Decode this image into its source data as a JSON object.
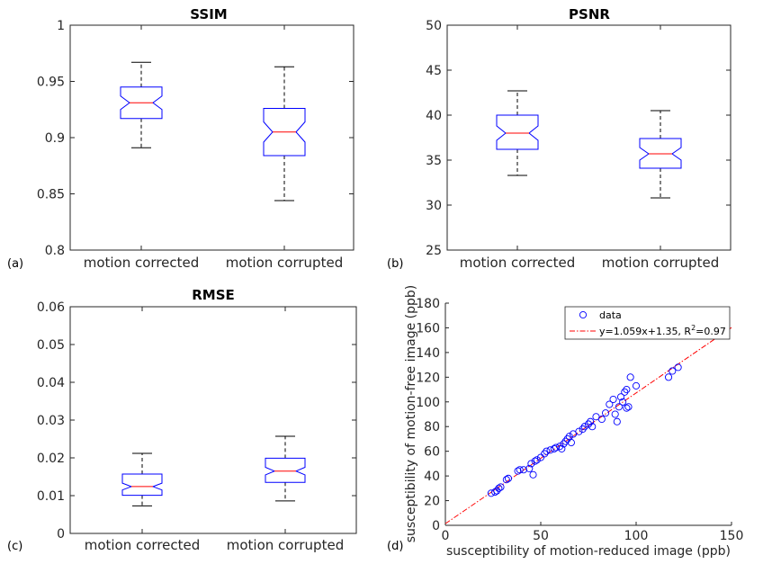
{
  "chart_data": [
    {
      "type": "box",
      "panel": "(a)",
      "title": "SSIM",
      "categories": [
        "motion corrected",
        "motion corrupted"
      ],
      "ylim": [
        0.8,
        1
      ],
      "yticks": [
        0.8,
        0.85,
        0.9,
        0.95,
        1
      ],
      "ytick_labels": [
        "0.8",
        "0.85",
        "0.9",
        "0.95",
        "1"
      ],
      "boxes": [
        {
          "whisker_low": 0.891,
          "q1": 0.917,
          "median": 0.931,
          "q3": 0.945,
          "whisker_high": 0.967,
          "notch_low": 0.925,
          "notch_high": 0.937
        },
        {
          "whisker_low": 0.844,
          "q1": 0.884,
          "median": 0.905,
          "q3": 0.926,
          "whisker_high": 0.963,
          "notch_low": 0.896,
          "notch_high": 0.914
        }
      ]
    },
    {
      "type": "box",
      "panel": "(b)",
      "title": "PSNR",
      "categories": [
        "motion corrected",
        "motion corrupted"
      ],
      "ylim": [
        25,
        50
      ],
      "yticks": [
        25,
        30,
        35,
        40,
        45,
        50
      ],
      "ytick_labels": [
        "25",
        "30",
        "35",
        "40",
        "45",
        "50"
      ],
      "boxes": [
        {
          "whisker_low": 33.3,
          "q1": 36.2,
          "median": 38.0,
          "q3": 40.0,
          "whisker_high": 42.7,
          "notch_low": 37.2,
          "notch_high": 38.8
        },
        {
          "whisker_low": 30.8,
          "q1": 34.1,
          "median": 35.7,
          "q3": 37.4,
          "whisker_high": 40.5,
          "notch_low": 35.0,
          "notch_high": 36.4
        }
      ]
    },
    {
      "type": "box",
      "panel": "(c)",
      "title": "RMSE",
      "categories": [
        "motion corrected",
        "motion corrupted"
      ],
      "ylim": [
        0,
        0.06
      ],
      "yticks": [
        0,
        0.01,
        0.02,
        0.03,
        0.04,
        0.05,
        0.06
      ],
      "ytick_labels": [
        "0",
        "0.01",
        "0.02",
        "0.03",
        "0.04",
        "0.05",
        "0.06"
      ],
      "boxes": [
        {
          "whisker_low": 0.0073,
          "q1": 0.0101,
          "median": 0.0124,
          "q3": 0.0157,
          "whisker_high": 0.0212,
          "notch_low": 0.0115,
          "notch_high": 0.0133
        },
        {
          "whisker_low": 0.0086,
          "q1": 0.0135,
          "median": 0.0165,
          "q3": 0.0199,
          "whisker_high": 0.0257,
          "notch_low": 0.0155,
          "notch_high": 0.0175
        }
      ]
    },
    {
      "type": "scatter",
      "panel": "(d)",
      "xlabel": "susceptibility of motion-reduced image (ppb)",
      "ylabel": "susceptibility of motion-free image (ppb)",
      "xlim": [
        0,
        150
      ],
      "ylim": [
        0,
        180
      ],
      "xticks": [
        0,
        50,
        100,
        150
      ],
      "xtick_labels": [
        "0",
        "50",
        "100",
        "150"
      ],
      "yticks": [
        0,
        20,
        40,
        60,
        80,
        100,
        120,
        140,
        160,
        180
      ],
      "ytick_labels": [
        "0",
        "20",
        "40",
        "60",
        "80",
        "100",
        "120",
        "140",
        "160",
        "180"
      ],
      "legend": {
        "data_label": "data",
        "fit_label": "y=1.059x+1.35, R",
        "fit_sup": "2",
        "fit_suffix": "=0.97",
        "position": "top-right"
      },
      "fit": {
        "slope": 1.059,
        "intercept": 1.35
      },
      "points": [
        [
          24,
          26
        ],
        [
          26,
          27
        ],
        [
          27,
          28
        ],
        [
          28,
          30
        ],
        [
          29,
          31
        ],
        [
          32,
          37
        ],
        [
          33,
          38
        ],
        [
          38,
          44
        ],
        [
          39,
          45
        ],
        [
          41,
          45
        ],
        [
          44,
          46
        ],
        [
          45,
          50
        ],
        [
          46,
          41
        ],
        [
          47,
          52
        ],
        [
          48,
          53
        ],
        [
          50,
          55
        ],
        [
          52,
          58
        ],
        [
          53,
          60
        ],
        [
          55,
          61
        ],
        [
          57,
          62
        ],
        [
          58,
          63
        ],
        [
          60,
          64
        ],
        [
          61,
          62
        ],
        [
          62,
          66
        ],
        [
          63,
          68
        ],
        [
          64,
          70
        ],
        [
          65,
          72
        ],
        [
          66,
          67
        ],
        [
          67,
          74
        ],
        [
          70,
          76
        ],
        [
          72,
          78
        ],
        [
          73,
          80
        ],
        [
          75,
          82
        ],
        [
          76,
          84
        ],
        [
          77,
          80
        ],
        [
          79,
          88
        ],
        [
          82,
          86
        ],
        [
          84,
          91
        ],
        [
          86,
          98
        ],
        [
          88,
          102
        ],
        [
          89,
          90
        ],
        [
          90,
          84
        ],
        [
          91,
          96
        ],
        [
          92,
          104
        ],
        [
          93,
          100
        ],
        [
          94,
          108
        ],
        [
          95,
          110
        ],
        [
          95,
          95
        ],
        [
          96,
          96
        ],
        [
          97,
          120
        ],
        [
          100,
          113
        ],
        [
          117,
          120
        ],
        [
          119,
          125
        ],
        [
          122,
          128
        ]
      ]
    }
  ]
}
